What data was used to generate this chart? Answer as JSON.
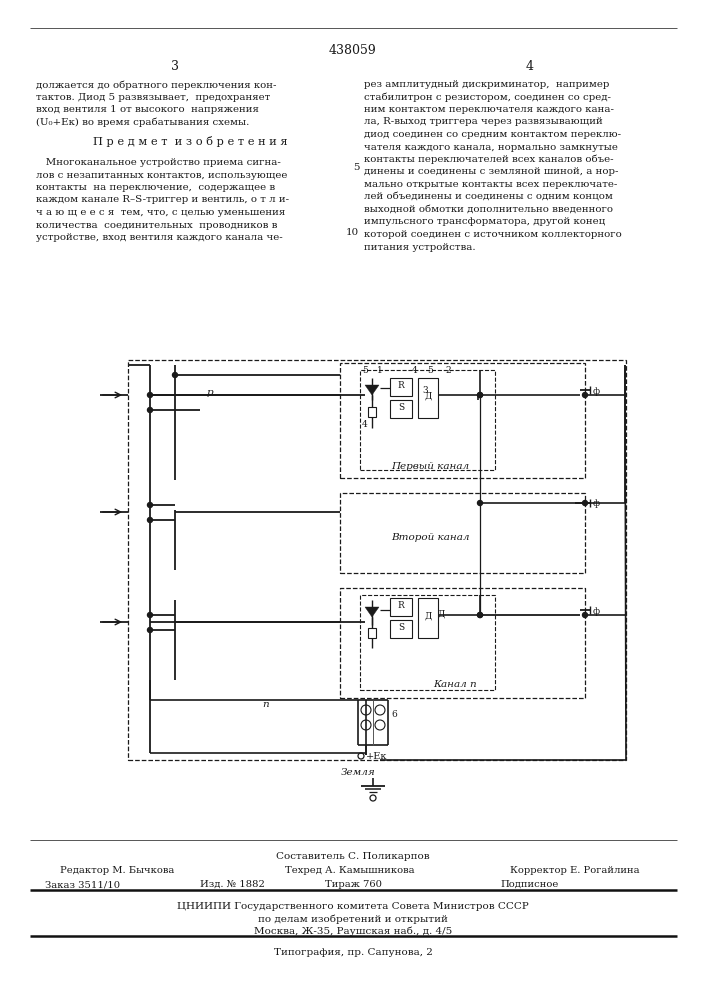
{
  "page_number": "438059",
  "col_left": "3",
  "col_right": "4",
  "text_left_top": "должается до обратного переключения кон-\nтактов. Диод 5 развязывает,  предохраняет\nвход вентиля 1 от высокого  напряжения\n(U₀+Eк) во время срабатывания схемы.",
  "section_title": "П р е д м е т  и з о б р е т е н и я",
  "text_left_body": "   Многоканальное устройство приема сигна-\nлов с незапитанных контактов, использующее\nконтакты  на переключение,  содержащее в\nкаждом канале R–S-триггер и вентиль, о т л и-\nч а ю щ е е с я  тем, что, с целью уменьшения\nколичества  соединительных  проводников в\nустройстве, вход вентиля каждого канала че-",
  "line_number_5": "5",
  "line_number_10": "10",
  "text_right_top": "рез амплитудный дискриминатор,  например\nстабилитрон с резистором, соединен со сред-\nним контактом переключателя каждого кана-\nла, R-выход триггера через развязывающий\nдиод соединен со средним контактом переклю-\nчателя каждого канала, нормально замкнутые\nконтакты переключателей всех каналов объе-\nдинены и соединены с земляной шиной, а нор-\nмально открытые контакты всех переключате-\nлей объединены и соединены с одним концом\nвыходной обмотки дополнительно введенного\nимпульсного трансформатора, другой конец\nкоторой соединен с источником коллекторного\nпитания устройства.",
  "footer_composer": "Составитель С. Поликарпов",
  "footer_editor": "Редактор М. Бычкова",
  "footer_tech": "Техред А. Камышникова",
  "footer_corrector": "Корректор Е. Рогайлина",
  "footer_order": "Заказ 3511/10",
  "footer_izd": "Изд. № 1882",
  "footer_tirazh": "Тираж 760",
  "footer_podpisnoe": "Подписное",
  "footer_org": "ЦНИИПИ Государственного комитета Совета Министров СССР",
  "footer_dept": "по делам изобретений и открытий",
  "footer_address": "Москва, Ж-35, Раушская наб., д. 4/5",
  "footer_typog": "Типография, пр. Сапунова, 2",
  "bg_color": "#ffffff",
  "text_color": "#1a1a1a"
}
